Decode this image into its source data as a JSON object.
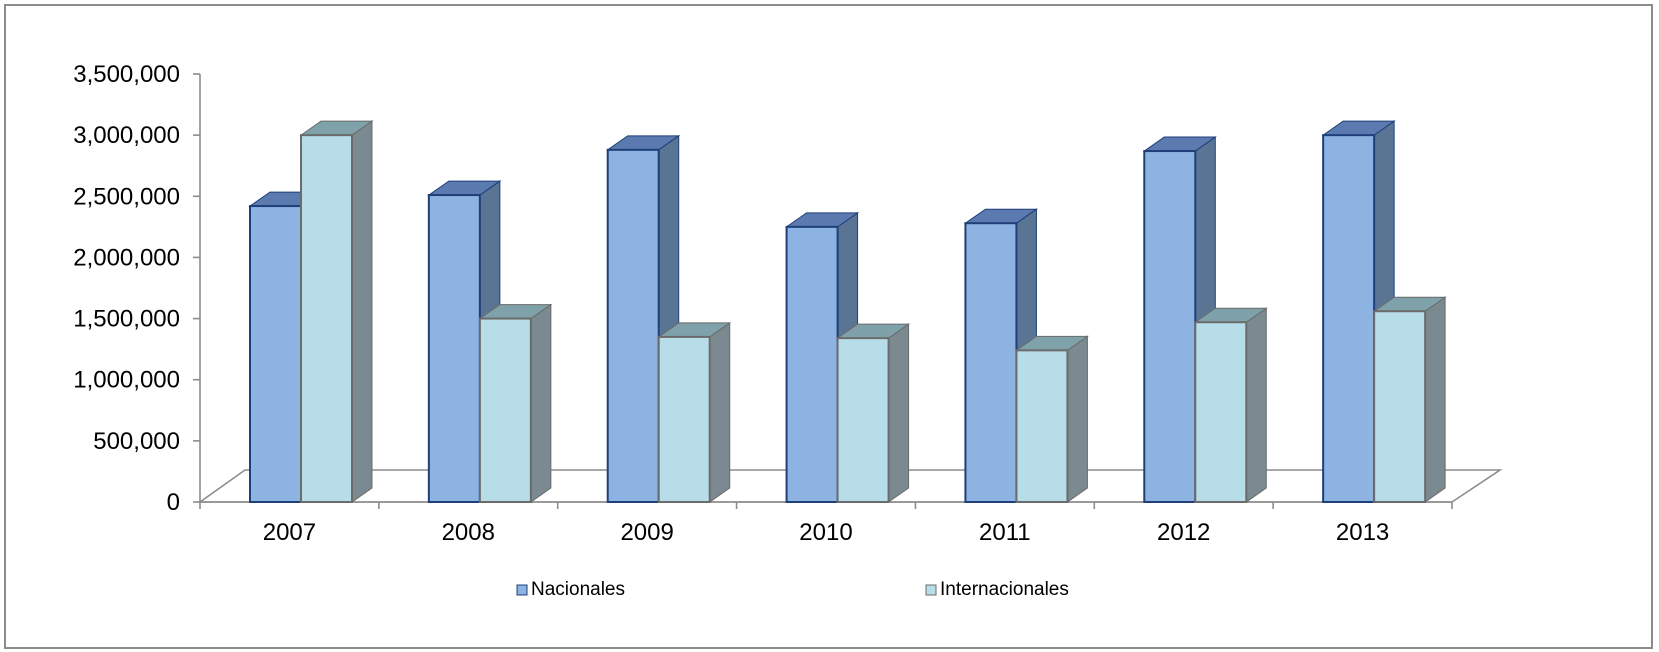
{
  "chart_data": {
    "type": "bar",
    "title": "",
    "xlabel": "",
    "ylabel": "",
    "categories": [
      "2007",
      "2008",
      "2009",
      "2010",
      "2011",
      "2012",
      "2013"
    ],
    "series": [
      {
        "name": "Nacionales",
        "values": [
          2420000,
          2510000,
          2880000,
          2250000,
          2280000,
          2870000,
          3000000
        ],
        "color": "#8db3e2",
        "top_color": "#5b7ab0",
        "side_color": "#5a7594",
        "edge_color": "#1f3f7a"
      },
      {
        "name": "Internacionales",
        "values": [
          3000000,
          1500000,
          1350000,
          1340000,
          1240000,
          1470000,
          1560000
        ],
        "color": "#b7dde8",
        "top_color": "#7fa1aa",
        "side_color": "#7a8a90",
        "edge_color": "#6b6b6b"
      }
    ],
    "ylim": [
      0,
      3500000
    ],
    "yticks": [
      "0",
      "500,000",
      "1,000,000",
      "1,500,000",
      "2,000,000",
      "2,500,000",
      "3,000,000",
      "3,500,000"
    ],
    "ytick_values": [
      0,
      500000,
      1000000,
      1500000,
      2000000,
      2500000,
      3000000,
      3500000
    ],
    "grid": false,
    "legend_position": "bottom",
    "three_d": true
  }
}
